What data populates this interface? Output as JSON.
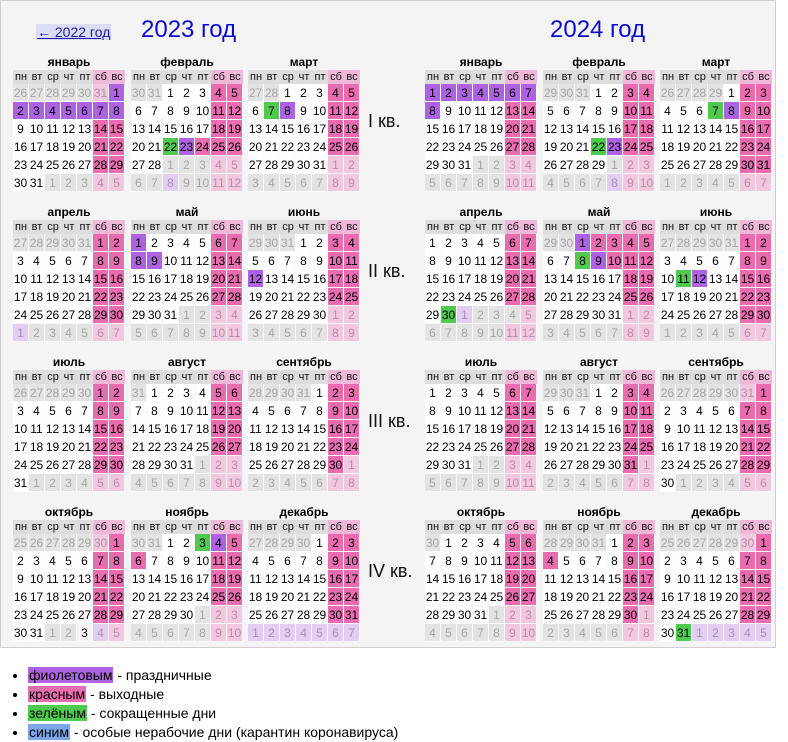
{
  "nav": {
    "back_label": "← 2022 год"
  },
  "years": [
    {
      "title": "2023 год",
      "quarters": [
        {
          "label": "I кв.",
          "months": [
            {
              "name": "январь",
              "weeks": [
                "26o 27o 28o 29o 30o 31or 1p",
                "2p 3p 4p 5p 6p 7p 8p",
                "9 10 11 12 13 14r 15r",
                "16 17 18 19 20 21r 22r",
                "23 24 25 26 27 28r 29r",
                "30 31 1o 2o 3o 4or 5or"
              ]
            },
            {
              "name": "февраль",
              "weeks": [
                "30o 31o 1 2 3 4r 5r",
                "6 7 8 9 10 11r 12r",
                "13 14 15 16 17 18r 19r",
                "20 21 22g 23p 24r 25r 26r",
                "27 28 1o 2o 3o 4or 5or",
                "6o 7o 8op 9o 10o 11or 12or"
              ]
            },
            {
              "name": "март",
              "weeks": [
                "27o 28o 1 2 3 4r 5r",
                "6 7g 8p 9 10 11r 12r",
                "13 14 15 16 17 18r 19r",
                "20 21 22 23 24 25r 26r",
                "27 28 29 30 31 1or 2or",
                "3o 4o 5o 6o 7o 8or 9or"
              ]
            }
          ]
        },
        {
          "label": "II кв.",
          "months": [
            {
              "name": "апрель",
              "weeks": [
                "27o 28o 29o 30o 31o 1r 2r",
                "3 4 5 6 7 8r 9r",
                "10 11 12 13 14 15r 16r",
                "17 18 19 20 21 22r 23r",
                "24 25 26 27 28 29r 30r",
                "1op 2o 3o 4o 5o 6or 7or"
              ]
            },
            {
              "name": "май",
              "weeks": [
                "1p 2 3 4 5 6r 7r",
                "8p 9p 10 11 12 13r 14r",
                "15 16 17 18 19 20r 21r",
                "22 23 24 25 26 27r 28r",
                "29 30 31 1o 2o 3or 4or",
                "5o 6o 7o 8o 9o 10or 11or"
              ]
            },
            {
              "name": "июнь",
              "weeks": [
                "29o 30o 31o 1 2 3r 4r",
                "5 6 7 8 9 10r 11r",
                "12p 13 14 15 16 17r 18r",
                "19 20 21 22 23 24r 25r",
                "26 27 28 29 30 1or 2or",
                "3o 4o 5o 6o 7o 8or 9or"
              ]
            }
          ]
        },
        {
          "label": "III кв.",
          "months": [
            {
              "name": "июль",
              "weeks": [
                "26o 27o 28o 29o 30o 1r 2r",
                "3 4 5 6 7 8r 9r",
                "10 11 12 13 14 15r 16r",
                "17 18 19 20 21 22r 23r",
                "24 25 26 27 28 29r 30r",
                "31 1o 2o 3o 4o 5or 6or"
              ]
            },
            {
              "name": "август",
              "weeks": [
                "31o 1 2 3 4 5r 6r",
                "7 8 9 10 11 12r 13r",
                "14 15 16 17 18 19r 20r",
                "21 22 23 24 25 26r 27r",
                "28 29 30 31 1o 2or 3or",
                "4o 5o 6o 7o 8o 9or 10or"
              ]
            },
            {
              "name": "сентябрь",
              "weeks": [
                "28o 29o 30o 31o 1 2r 3r",
                "4 5 6 7 8 9r 10r",
                "11 12 13 14 15 16r 17r",
                "18 19 20 21 22 23r 24r",
                "25 26 27 28 29 30r 1or",
                "2o 3o 4o 5o 6o 7or 8or"
              ]
            }
          ]
        },
        {
          "label": "IV кв.",
          "months": [
            {
              "name": "октябрь",
              "weeks": [
                "25o 26o 27o 28o 29o 30or 1r",
                "2 3 4 5 6 7r 8r",
                "9 10 11 12 13 14r 15r",
                "16 17 18 19 20 21r 22r",
                "23 24 25 26 27 28r 29r",
                "30 31 1o 2o 3og 4op 5or"
              ]
            },
            {
              "name": "ноябрь",
              "weeks": [
                "30o 31o 1 2 3g 4p 5r",
                "6r 7 8 9 10 11r 12r",
                "13 14 15 16 17 18r 19r",
                "20 21 22 23 24 25r 26r",
                "27 28 29 30 1o 2or 3or",
                "4o 5o 6o 7o 8o 9or 10or"
              ]
            },
            {
              "name": "декабрь",
              "weeks": [
                "27o 28o 29o 30o 1 2r 3r",
                "4 5 6 7 8 9r 10r",
                "11 12 13 14 15 16r 17r",
                "18 19 20 21 22 23r 24r",
                "25 26 27 28 29 30r 31r",
                "1op 2op 3op 4op 5op 6op 7op"
              ]
            }
          ]
        }
      ]
    },
    {
      "title": "2024 год",
      "quarters": [
        {
          "label": "",
          "months": [
            {
              "name": "январь",
              "weeks": [
                "1p 2p 3p 4p 5p 6p 7p",
                "8p 9 10 11 12 13r 14r",
                "15 16 17 18 19 20r 21r",
                "22 23 24 25 26 27r 28r",
                "29 30 31 1o 2o 3or 4or",
                "5o 6o 7o 8o 9o 10or 11or"
              ]
            },
            {
              "name": "февраль",
              "weeks": [
                "29o 30o 31o 1 2 3r 4r",
                "5 6 7 8 9 10r 11r",
                "12 13 14 15 16 17r 18r",
                "19 20 21 22g 23p 24r 25r",
                "26 27 28 29 1o 2or 3or",
                "4o 5o 6o 7o 8op 9or 10or"
              ]
            },
            {
              "name": "март",
              "weeks": [
                "26o 27o 28o 29o 1 2r 3r",
                "4 5 6 7g 8p 9r 10r",
                "11 12 13 14 15 16r 17r",
                "18 19 20 21 22 23r 24r",
                "25 26 27 28 29 30r 31r",
                "1o 2o 3o 4o 5o 6or 7or"
              ]
            }
          ]
        },
        {
          "label": "",
          "months": [
            {
              "name": "апрель",
              "weeks": [
                "1 2 3 4 5 6r 7r",
                "8 9 10 11 12 13r 14r",
                "15 16 17 18 19 20r 21r",
                "22 23 24 25 26 27r 28r",
                "29 30g 1op 2o 3o 4o 5or",
                "6o 7o 8o 9o 10o 11or 12or"
              ]
            },
            {
              "name": "май",
              "weeks": [
                "29o 30o 1p 2r 3r 4r 5r",
                "6 7 8g 9p 10r 11r 12r",
                "13 14 15 16 17 18r 19r",
                "20 21 22 23 24 25r 26r",
                "27 28 29 30 31 1or 2or",
                "3o 4o 5o 6o 7o 8or 9or"
              ]
            },
            {
              "name": "июнь",
              "weeks": [
                "27o 28o 29o 30o 31o 1r 2r",
                "3 4 5 6 7 8r 9r",
                "10 11g 12p 13 14 15r 16r",
                "17 18 19 20 21 22r 23r",
                "24 25 26 27 28 29r 30r",
                "1o 2o 3o 4o 5o 6or 7or"
              ]
            }
          ]
        },
        {
          "label": "",
          "months": [
            {
              "name": "июль",
              "weeks": [
                "1 2 3 4 5 6r 7r",
                "8 9 10 11 12 13r 14r",
                "15 16 17 18 19 20r 21r",
                "22 23 24 25 26 27r 28r",
                "29 30 31 1o 2o 3or 4or",
                "5o 6o 7o 8o 9o 10or 11or"
              ]
            },
            {
              "name": "август",
              "weeks": [
                "29o 30o 31o 1 2 3r 4r",
                "5 6 7 8 9 10r 11r",
                "12 13 14 15 16 17r 18r",
                "19 20 21 22 23 24r 25r",
                "26 27 28 29 30 31r 1or",
                "2o 3o 4o 5o 6o 7or 8or"
              ]
            },
            {
              "name": "сентябрь",
              "weeks": [
                "26o 27o 28o 29o 30o 31or 1r",
                "2 3 4 5 6 7r 8r",
                "9 10 11 12 13 14r 15r",
                "16 17 18 19 20 21r 22r",
                "23 24 25 26 27 28r 29r",
                "30 1o 2o 3o 4o 5or 6or"
              ]
            }
          ]
        },
        {
          "label": "",
          "months": [
            {
              "name": "октябрь",
              "weeks": [
                "30o 1 2 3 4 5r 6r",
                "7 8 9 10 11 12r 13r",
                "14 15 16 17 18 19r 20r",
                "21 22 23 24 25 26r 27r",
                "28 29 30 31 1o 2or 3or",
                "4o 5o 6o 7o 8o 9or 10or"
              ]
            },
            {
              "name": "ноябрь",
              "weeks": [
                "28o 29o 30o 31o 1 2r 3r",
                "4r 5 6 7 8 9r 10r",
                "11 12 13 14 15 16r 17r",
                "18 19 20 21 22 23r 24r",
                "25 26 27 28 29 30r 1or",
                "2o 3o 4o 5o 6o 7or 8or"
              ]
            },
            {
              "name": "декабрь",
              "weeks": [
                "25o 26o 27o 28o 29o 30or 1r",
                "2 3 4 5 6 7r 8r",
                "9 10 11 12 13 14r 15r",
                "16 17 18 19 20 21r 22r",
                "23 24 25 26 27 28r 29r",
                "30 31g 1op 2op 3op 4op 5op"
              ]
            }
          ]
        }
      ]
    }
  ],
  "weekdays": [
    "пн",
    "вт",
    "ср",
    "чт",
    "пт",
    "сб",
    "вс"
  ],
  "legend": [
    {
      "term": "фиолетовым",
      "desc": " - праздничные",
      "color": "#ad62e2"
    },
    {
      "term": "красным",
      "desc": " - выходные",
      "color": "#e96cb0"
    },
    {
      "term": "зелёным",
      "desc": " - сокращенные дни",
      "color": "#4fca4f"
    },
    {
      "term": "синим",
      "desc": " - особые нерабочие дни (карантин коронавируса)",
      "color": "#7ca6e8"
    }
  ]
}
